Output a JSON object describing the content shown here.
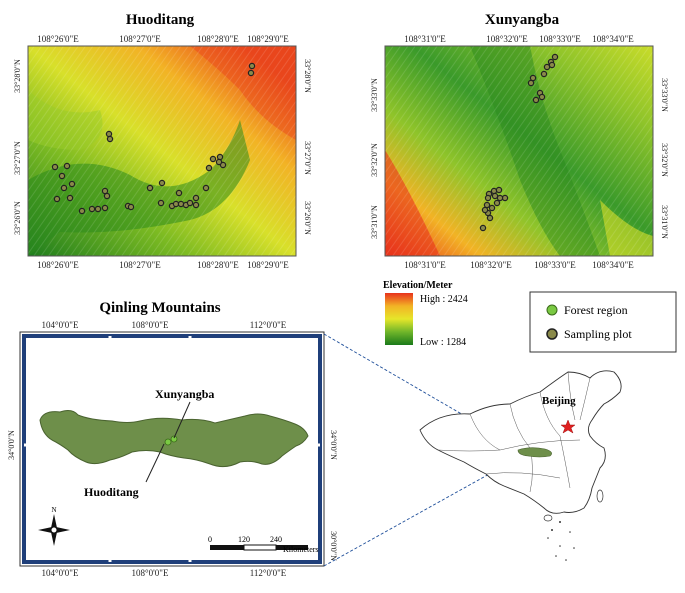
{
  "panels": {
    "huoditang": {
      "title": "Huoditang",
      "top_ticks": [
        "108°26'0\"E",
        "108°27'0\"E",
        "108°28'0\"E",
        "108°29'0\"E"
      ],
      "bottom_ticks": [
        "108°26'0\"E",
        "108°27'0\"E",
        "108°28'0\"E",
        "108°29'0\"E"
      ],
      "left_ticks": [
        "33°28'0\"N",
        "33°27'0\"N",
        "33°26'0\"N"
      ],
      "right_ticks": [
        "33°28'0\"N",
        "33°27'0\"N",
        "33°26'0\"N"
      ],
      "plot_count": 36
    },
    "xunyangba": {
      "title": "Xunyangba",
      "top_ticks": [
        "108°31'0\"E",
        "108°32'0\"E",
        "108°33'0\"E",
        "108°34'0\"E"
      ],
      "bottom_ticks": [
        "108°31'0\"E",
        "108°32'0\"E",
        "108°33'0\"E",
        "108°34'0\"E"
      ],
      "left_ticks": [
        "33°33'0\"N",
        "33°32'0\"N",
        "33°31'0\"N"
      ],
      "right_ticks": [
        "33°33'0\"N",
        "33°32'0\"N",
        "33°31'0\"N"
      ],
      "plot_count": 24
    },
    "qinling": {
      "title": "Qinling Mountains",
      "top_ticks": [
        "104°0'0\"E",
        "108°0'0\"E",
        "112°0'0\"E"
      ],
      "bottom_ticks": [
        "104°0'0\"E",
        "108°0'0\"E",
        "112°0'0\"E"
      ],
      "left_ticks": [
        "34°0'0\"N"
      ],
      "right_ticks": [
        "34°0'0\"N",
        "30°0'0\"N"
      ],
      "site_labels": [
        "Xunyangba",
        "Huoditang"
      ],
      "scale_ticks": [
        "0",
        "120",
        "240"
      ],
      "scale_unit": "Kilometers",
      "north": "N"
    }
  },
  "legend": {
    "elevation_title": "Elevation/Meter",
    "high_label": "High : 2424",
    "low_label": "Low : 1284",
    "high_color": "#e8321c",
    "low_color": "#1a7a1a",
    "items": [
      {
        "label": "Forest region",
        "color": "#7ac943",
        "icon": "green-dot-icon"
      },
      {
        "label": "Sampling plot",
        "color": "#8a8a4a",
        "icon": "olive-dot-icon"
      }
    ]
  },
  "china": {
    "city_label": "Beijing",
    "city_marker": "red-star-icon",
    "star_color": "#e02020"
  }
}
